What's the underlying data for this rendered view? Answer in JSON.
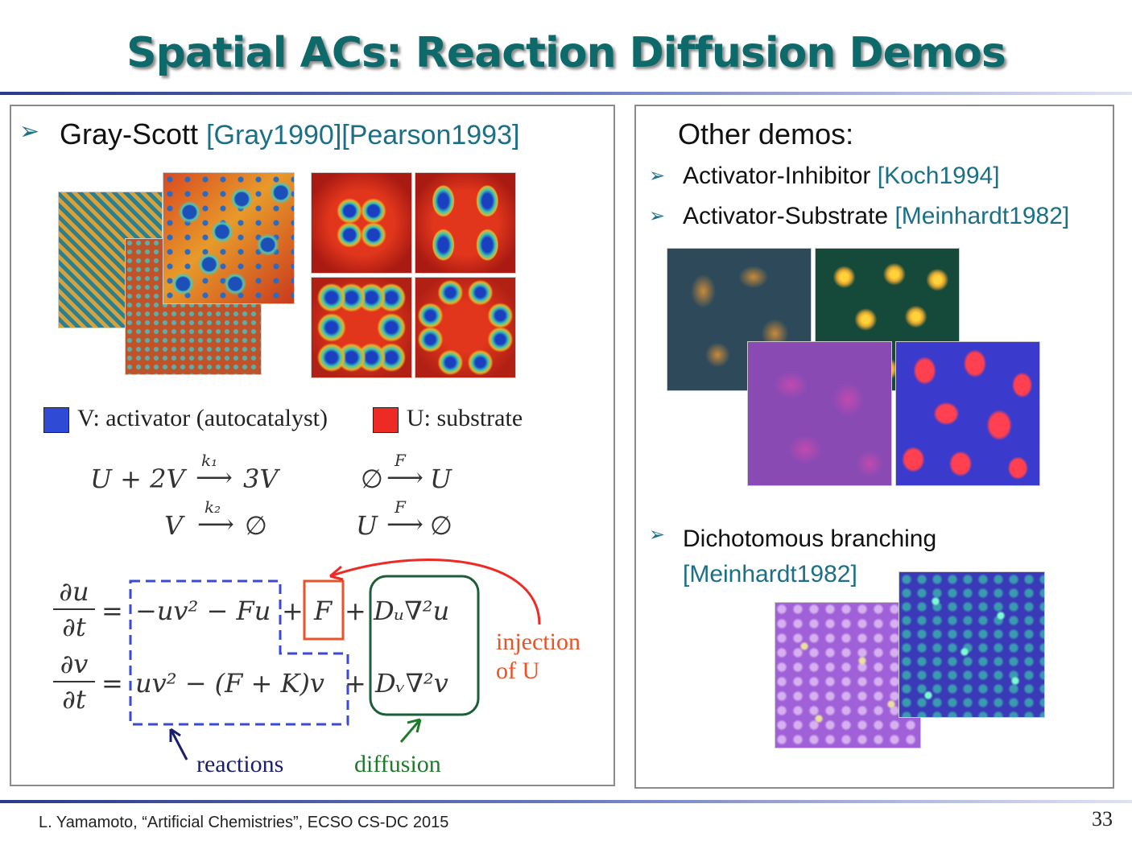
{
  "slide": {
    "title": "Spatial ACs: Reaction Diffusion Demos",
    "page_number": "33",
    "footer": "L. Yamamoto, “Artificial Chemistries”, ECSO CS-DC 2015"
  },
  "left": {
    "heading": "Gray-Scott",
    "heading_cites": "[Gray1990][Pearson1993]",
    "legend_v": "V: activator (autocatalyst)",
    "legend_u": "U: substrate",
    "colors": {
      "v": "#2f4bd6",
      "u": "#ee2a24",
      "reactions_box": "#3a49d6",
      "injection_box": "#e8532a",
      "diffusion_box": "#1d5e3a"
    },
    "reactions": {
      "r1_left": "U + 2V",
      "r1_k": "k₁",
      "r1_right": "3V",
      "r2_left": "V",
      "r2_k": "k₂",
      "r2_right": "∅",
      "r3_left": "∅",
      "r3_k": "F",
      "r3_right": "U",
      "r4_left": "U",
      "r4_k": "F",
      "r4_right": "∅"
    },
    "equations": {
      "du_num": "∂u",
      "du_den": "∂t",
      "dv_num": "∂v",
      "dv_den": "∂t",
      "eq1_reaction": "−uv² − Fu",
      "eq1_injection": "F",
      "eq1_diffusion": "Dᵤ∇²u",
      "eq2_reaction": "uv² − (F + K)v",
      "eq2_diffusion": "Dᵥ∇²v"
    },
    "annotations": {
      "reactions": "reactions",
      "diffusion": "diffusion",
      "injection_line1": "injection",
      "injection_line2": "of U"
    }
  },
  "right": {
    "heading": "Other demos:",
    "items": [
      {
        "label": "Activator-Inhibitor",
        "cite": "[Koch1994]"
      },
      {
        "label": "Activator-Substrate",
        "cite": "[Meinhardt1982]"
      },
      {
        "label": "Dichotomous branching",
        "cite": "[Meinhardt1982]"
      }
    ]
  }
}
